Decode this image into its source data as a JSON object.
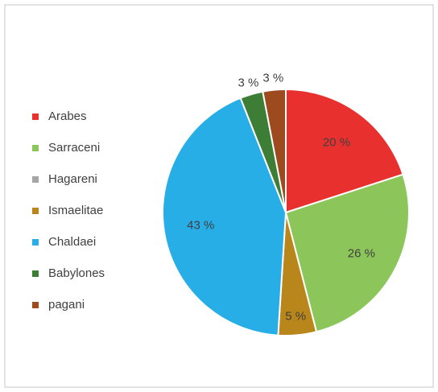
{
  "chart_data": {
    "type": "pie",
    "categories": [
      "Arabes",
      "Sarraceni",
      "Hagareni",
      "Ismaelitae",
      "Chaldaei",
      "Babylones",
      "pagani"
    ],
    "values": [
      20,
      26,
      0,
      5,
      43,
      3,
      3
    ],
    "value_labels": [
      "20 %",
      "26 %",
      null,
      "5 %",
      "43 %",
      "3 %",
      "3 %"
    ],
    "colors": [
      "#e8302e",
      "#8cc65a",
      "#a5a5a5",
      "#b8861a",
      "#27aee7",
      "#3e7d35",
      "#9c4a1e"
    ],
    "legend": "left"
  }
}
